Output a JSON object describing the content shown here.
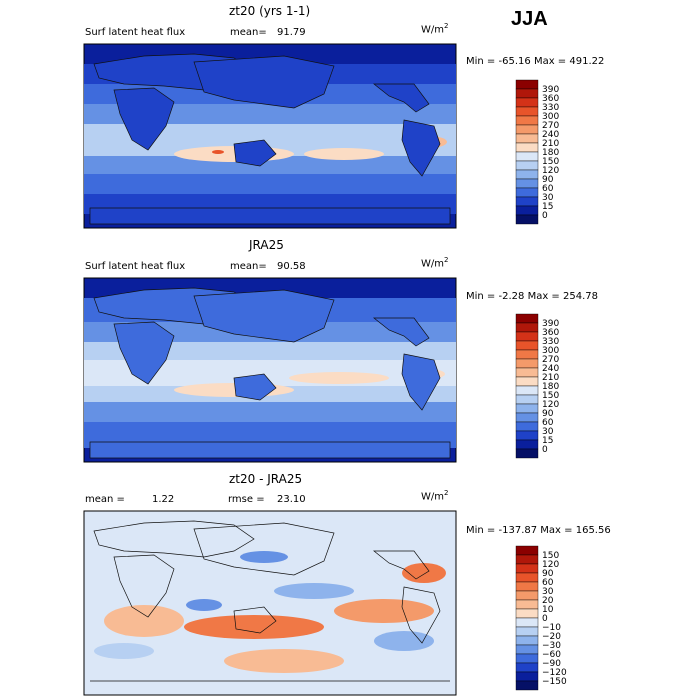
{
  "season": "JJA",
  "panels": [
    {
      "title": "zt20 (yrs 1-1)",
      "left_label": "Surf latent heat flux",
      "stat1_label": "mean=",
      "stat1_value": "91.79",
      "stat2_label": "",
      "stat2_value": "",
      "units": "W/m",
      "units_exp": "2",
      "min_label": "Min =",
      "min_value": "-65.16",
      "max_label": "Max =",
      "max_value": "491.22"
    },
    {
      "title": "JRA25",
      "left_label": "Surf latent heat flux",
      "stat1_label": "mean=",
      "stat1_value": "90.58",
      "stat2_label": "",
      "stat2_value": "",
      "units": "W/m",
      "units_exp": "2",
      "min_label": "Min =",
      "min_value": "-2.28",
      "max_label": "Max =",
      "max_value": "254.78"
    },
    {
      "title": "zt20 - JRA25",
      "left_label": "mean =",
      "stat1_label": "1.22",
      "stat1_value": "",
      "stat2_label": "rmse =",
      "stat2_value": "23.10",
      "units": "W/m",
      "units_exp": "2",
      "min_label": "Min =",
      "min_value": "-137.87",
      "max_label": "Max =",
      "max_value": "165.56"
    }
  ],
  "chart_data": [
    {
      "type": "heatmap",
      "title": "zt20 (yrs 1-1)",
      "variable": "Surf latent heat flux",
      "units": "W/m^2",
      "mean": 91.79,
      "min": -65.16,
      "max": 491.22,
      "colorbar_levels": [
        "390",
        "360",
        "330",
        "300",
        "270",
        "240",
        "210",
        "180",
        "150",
        "120",
        "90",
        "60",
        "30",
        "15",
        "0"
      ],
      "colorbar_colors": [
        "#8b0000",
        "#b0170a",
        "#d43218",
        "#e8542a",
        "#f07846",
        "#f49a6a",
        "#f8bb94",
        "#fbdcc4",
        "#dbe7f7",
        "#b7d0f2",
        "#8eb3ec",
        "#6591e4",
        "#3e6bdc",
        "#1f42c8",
        "#0a1f9c",
        "#051066"
      ],
      "map_region": "global"
    },
    {
      "type": "heatmap",
      "title": "JRA25",
      "variable": "Surf latent heat flux",
      "units": "W/m^2",
      "mean": 90.58,
      "min": -2.28,
      "max": 254.78,
      "colorbar_levels": [
        "390",
        "360",
        "330",
        "300",
        "270",
        "240",
        "210",
        "180",
        "150",
        "120",
        "90",
        "60",
        "30",
        "15",
        "0"
      ],
      "colorbar_colors": [
        "#8b0000",
        "#b0170a",
        "#d43218",
        "#e8542a",
        "#f07846",
        "#f49a6a",
        "#f8bb94",
        "#fbdcc4",
        "#dbe7f7",
        "#b7d0f2",
        "#8eb3ec",
        "#6591e4",
        "#3e6bdc",
        "#1f42c8",
        "#0a1f9c",
        "#051066"
      ],
      "map_region": "global"
    },
    {
      "type": "heatmap",
      "title": "zt20 - JRA25",
      "units": "W/m^2",
      "mean": 1.22,
      "rmse": 23.1,
      "min": -137.87,
      "max": 165.56,
      "colorbar_levels": [
        "150",
        "120",
        "90",
        "60",
        "30",
        "20",
        "10",
        "0",
        "−10",
        "−20",
        "−30",
        "−60",
        "−90",
        "−120",
        "−150"
      ],
      "colorbar_colors": [
        "#8b0000",
        "#b0170a",
        "#d43218",
        "#e8542a",
        "#f07846",
        "#f49a6a",
        "#f8bb94",
        "#fbdcc4",
        "#dbe7f7",
        "#b7d0f2",
        "#8eb3ec",
        "#6591e4",
        "#3e6bdc",
        "#1f42c8",
        "#0a1f9c",
        "#051066"
      ],
      "map_region": "global"
    }
  ]
}
